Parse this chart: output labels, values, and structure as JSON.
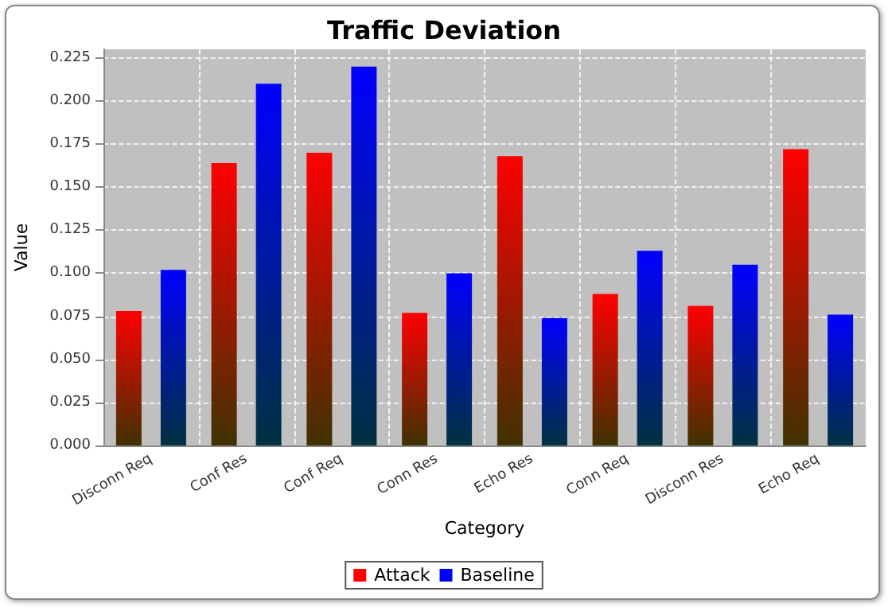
{
  "chart_data": {
    "type": "bar",
    "title": "Traffic Deviation",
    "xlabel": "Category",
    "ylabel": "Value",
    "categories": [
      "Disconn Req",
      "Conf Res",
      "Conf Req",
      "Conn Res",
      "Echo Res",
      "Conn Req",
      "Disconn Res",
      "Echo Req"
    ],
    "series": [
      {
        "name": "Attack",
        "color": "#ff0000",
        "values": [
          0.078,
          0.164,
          0.17,
          0.077,
          0.168,
          0.088,
          0.081,
          0.172
        ]
      },
      {
        "name": "Baseline",
        "color": "#0000ff",
        "values": [
          0.102,
          0.21,
          0.22,
          0.1,
          0.074,
          0.113,
          0.105,
          0.076
        ]
      }
    ],
    "ylim": [
      0,
      0.23
    ],
    "yticks": [
      {
        "value": 0,
        "label": "0.000"
      },
      {
        "value": 0.025,
        "label": "0.025"
      },
      {
        "value": 0.05,
        "label": "0.050"
      },
      {
        "value": 0.075,
        "label": "0.075"
      },
      {
        "value": 0.1,
        "label": "0.100"
      },
      {
        "value": 0.125,
        "label": "0.125"
      },
      {
        "value": 0.15,
        "label": "0.150"
      },
      {
        "value": 0.175,
        "label": "0.175"
      },
      {
        "value": 0.2,
        "label": "0.200"
      },
      {
        "value": 0.225,
        "label": "0.225"
      }
    ],
    "grid": true,
    "legend": "bottom"
  }
}
